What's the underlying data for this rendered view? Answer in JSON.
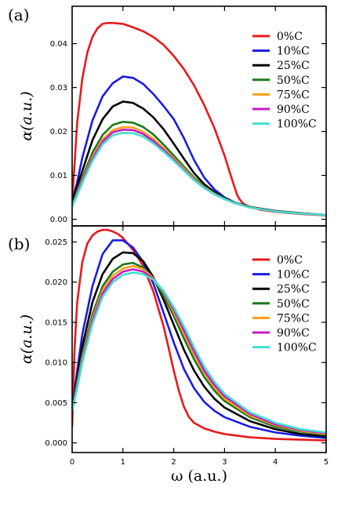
{
  "chart_data": [
    {
      "type": "line",
      "panel_label": "(a)",
      "ylabel": "α(a.u.)",
      "xlabel": "",
      "xlim": [
        0,
        5
      ],
      "ylim": [
        -0.0015,
        0.0485
      ],
      "xticks": [
        0,
        1,
        2,
        3,
        4,
        5
      ],
      "xtick_labels": [
        "",
        "",
        "",
        "",
        "",
        ""
      ],
      "yticks": [
        0.0,
        0.01,
        0.02,
        0.03,
        0.04
      ],
      "ytick_labels": [
        "0.00",
        "0.01",
        "0.02",
        "0.03",
        "0.04"
      ],
      "legend_position": "top-right",
      "series": [
        {
          "name": "0%C",
          "color": "#e8191c",
          "x": [
            0,
            0.1,
            0.2,
            0.3,
            0.4,
            0.5,
            0.6,
            0.7,
            0.8,
            1.0,
            1.2,
            1.4,
            1.6,
            1.8,
            2.0,
            2.2,
            2.4,
            2.6,
            2.8,
            3.0,
            3.1,
            3.2,
            3.25,
            3.3,
            3.35,
            3.4,
            3.5,
            3.7,
            4.0,
            4.5,
            5.0
          ],
          "y": [
            0.004,
            0.022,
            0.032,
            0.038,
            0.0415,
            0.0435,
            0.0445,
            0.0447,
            0.0447,
            0.0445,
            0.0437,
            0.0428,
            0.0415,
            0.0397,
            0.0372,
            0.0342,
            0.0305,
            0.026,
            0.0208,
            0.0145,
            0.0108,
            0.0072,
            0.0055,
            0.0045,
            0.0038,
            0.0033,
            0.0028,
            0.0022,
            0.0017,
            0.0012,
            0.0009
          ]
        },
        {
          "name": "10%C",
          "color": "#1a1ae6",
          "x": [
            0,
            0.1,
            0.2,
            0.4,
            0.6,
            0.8,
            1.0,
            1.2,
            1.4,
            1.6,
            1.8,
            2.0,
            2.2,
            2.4,
            2.6,
            2.8,
            3.0,
            3.2,
            3.5,
            4.0,
            4.5,
            5.0
          ],
          "y": [
            0.004,
            0.0085,
            0.014,
            0.0225,
            0.028,
            0.031,
            0.0325,
            0.0322,
            0.0308,
            0.0285,
            0.0258,
            0.0228,
            0.0185,
            0.0135,
            0.0095,
            0.0068,
            0.005,
            0.0038,
            0.0027,
            0.0018,
            0.0013,
            0.001
          ]
        },
        {
          "name": "25%C",
          "color": "#000000",
          "x": [
            0,
            0.1,
            0.2,
            0.4,
            0.6,
            0.8,
            1.0,
            1.2,
            1.4,
            1.6,
            1.8,
            2.0,
            2.2,
            2.4,
            2.6,
            2.8,
            3.0,
            3.2,
            3.5,
            4.0,
            4.5,
            5.0
          ],
          "y": [
            0.004,
            0.0075,
            0.011,
            0.018,
            0.0228,
            0.0257,
            0.0268,
            0.0265,
            0.0252,
            0.0232,
            0.0205,
            0.0172,
            0.0138,
            0.0105,
            0.008,
            0.0062,
            0.0048,
            0.0038,
            0.0028,
            0.0019,
            0.0014,
            0.001
          ]
        },
        {
          "name": "50%C",
          "color": "#1a7a1a",
          "x": [
            0,
            0.1,
            0.2,
            0.4,
            0.6,
            0.8,
            1.0,
            1.2,
            1.4,
            1.6,
            1.8,
            2.0,
            2.2,
            2.4,
            2.6,
            2.8,
            3.0,
            3.2,
            3.5,
            4.0,
            4.5,
            5.0
          ],
          "y": [
            0.003,
            0.0065,
            0.0095,
            0.0152,
            0.0192,
            0.0215,
            0.0222,
            0.022,
            0.021,
            0.0193,
            0.017,
            0.0145,
            0.012,
            0.0095,
            0.0075,
            0.0059,
            0.0047,
            0.0037,
            0.0027,
            0.0018,
            0.0013,
            0.001
          ]
        },
        {
          "name": "75%C",
          "color": "#ff9f1a",
          "x": [
            0,
            0.1,
            0.2,
            0.4,
            0.6,
            0.8,
            1.0,
            1.2,
            1.4,
            1.6,
            1.8,
            2.0,
            2.2,
            2.4,
            2.6,
            2.8,
            3.0,
            3.2,
            3.5,
            4.0,
            4.5,
            5.0
          ],
          "y": [
            0.003,
            0.006,
            0.009,
            0.0142,
            0.0182,
            0.0203,
            0.021,
            0.0209,
            0.0199,
            0.0183,
            0.0162,
            0.0139,
            0.0116,
            0.0092,
            0.0073,
            0.0058,
            0.0046,
            0.0037,
            0.0027,
            0.0018,
            0.0013,
            0.001
          ]
        },
        {
          "name": "90%C",
          "color": "#c71ac7",
          "x": [
            0,
            0.1,
            0.2,
            0.4,
            0.6,
            0.8,
            1.0,
            1.2,
            1.4,
            1.6,
            1.8,
            2.0,
            2.2,
            2.4,
            2.6,
            2.8,
            3.0,
            3.2,
            3.5,
            4.0,
            4.5,
            5.0
          ],
          "y": [
            0.003,
            0.0058,
            0.0087,
            0.0138,
            0.0177,
            0.0198,
            0.0204,
            0.0203,
            0.0194,
            0.0178,
            0.0158,
            0.0136,
            0.0113,
            0.009,
            0.0072,
            0.0057,
            0.0046,
            0.0037,
            0.0027,
            0.0018,
            0.0013,
            0.001
          ]
        },
        {
          "name": "100%C",
          "color": "#40e0d0",
          "x": [
            0,
            0.1,
            0.2,
            0.4,
            0.6,
            0.8,
            1.0,
            1.2,
            1.4,
            1.6,
            1.8,
            2.0,
            2.2,
            2.4,
            2.6,
            2.8,
            3.0,
            3.2,
            3.5,
            4.0,
            4.5,
            5.0
          ],
          "y": [
            0.003,
            0.0055,
            0.0083,
            0.0133,
            0.0171,
            0.0191,
            0.0197,
            0.0196,
            0.0188,
            0.0173,
            0.0154,
            0.0133,
            0.0111,
            0.0089,
            0.0071,
            0.0057,
            0.0046,
            0.0037,
            0.0027,
            0.0018,
            0.0013,
            0.001
          ]
        }
      ]
    },
    {
      "type": "line",
      "panel_label": "(b)",
      "ylabel": "α(a.u.)",
      "xlabel": "ω (a.u.)",
      "xlim": [
        0,
        5
      ],
      "ylim": [
        -0.0012,
        0.027
      ],
      "xticks": [
        0,
        1,
        2,
        3,
        4,
        5
      ],
      "xtick_labels": [
        "0",
        "1",
        "2",
        "3",
        "4",
        "5"
      ],
      "yticks": [
        0.0,
        0.005,
        0.01,
        0.015,
        0.02,
        0.025
      ],
      "ytick_labels": [
        "0.000",
        "0.005",
        "0.010",
        "0.015",
        "0.020",
        "0.025"
      ],
      "legend_position": "top-right",
      "series": [
        {
          "name": "0%C",
          "color": "#e8191c",
          "x": [
            0,
            0.05,
            0.1,
            0.2,
            0.3,
            0.4,
            0.5,
            0.6,
            0.7,
            0.8,
            0.9,
            1.0,
            1.2,
            1.4,
            1.6,
            1.8,
            1.9,
            2.0,
            2.1,
            2.2,
            2.3,
            2.4,
            2.6,
            2.8,
            3.0,
            3.5,
            4.0,
            4.5,
            5.0
          ],
          "y": [
            0.002,
            0.012,
            0.0175,
            0.0225,
            0.0248,
            0.0258,
            0.0263,
            0.0265,
            0.0265,
            0.0263,
            0.026,
            0.0255,
            0.024,
            0.022,
            0.0188,
            0.0145,
            0.0118,
            0.009,
            0.0065,
            0.0045,
            0.0032,
            0.0025,
            0.0018,
            0.0014,
            0.0011,
            0.0007,
            0.0005,
            0.0004,
            0.0003
          ]
        },
        {
          "name": "10%C",
          "color": "#1a1ae6",
          "x": [
            0,
            0.1,
            0.2,
            0.4,
            0.6,
            0.8,
            1.0,
            1.2,
            1.4,
            1.6,
            1.8,
            2.0,
            2.2,
            2.4,
            2.6,
            2.8,
            3.0,
            3.5,
            4.0,
            4.5,
            5.0
          ],
          "y": [
            0.004,
            0.009,
            0.0135,
            0.0195,
            0.0235,
            0.0252,
            0.0252,
            0.0243,
            0.0225,
            0.0198,
            0.0162,
            0.0125,
            0.0092,
            0.0068,
            0.0051,
            0.004,
            0.0032,
            0.002,
            0.0013,
            0.0009,
            0.0006
          ]
        },
        {
          "name": "25%C",
          "color": "#000000",
          "x": [
            0,
            0.1,
            0.2,
            0.4,
            0.6,
            0.8,
            1.0,
            1.2,
            1.4,
            1.6,
            1.8,
            2.0,
            2.2,
            2.4,
            2.6,
            2.8,
            3.0,
            3.5,
            4.0,
            4.5,
            5.0
          ],
          "y": [
            0.004,
            0.008,
            0.012,
            0.0175,
            0.021,
            0.0229,
            0.0237,
            0.0236,
            0.0226,
            0.0206,
            0.0178,
            0.0147,
            0.0116,
            0.009,
            0.007,
            0.0055,
            0.0044,
            0.0027,
            0.0017,
            0.0011,
            0.0008
          ]
        },
        {
          "name": "50%C",
          "color": "#1a7a1a",
          "x": [
            0,
            0.1,
            0.2,
            0.4,
            0.6,
            0.8,
            1.0,
            1.2,
            1.4,
            1.6,
            1.8,
            2.0,
            2.2,
            2.4,
            2.6,
            2.8,
            3.0,
            3.5,
            4.0,
            4.5,
            5.0
          ],
          "y": [
            0.004,
            0.0075,
            0.011,
            0.016,
            0.0195,
            0.0213,
            0.0222,
            0.0224,
            0.0218,
            0.0204,
            0.0183,
            0.0158,
            0.013,
            0.0104,
            0.0082,
            0.0065,
            0.0052,
            0.0032,
            0.002,
            0.0014,
            0.001
          ]
        },
        {
          "name": "75%C",
          "color": "#ff9f1a",
          "x": [
            0,
            0.1,
            0.2,
            0.4,
            0.6,
            0.8,
            1.0,
            1.2,
            1.4,
            1.6,
            1.8,
            2.0,
            2.2,
            2.4,
            2.6,
            2.8,
            3.0,
            3.5,
            4.0,
            4.5,
            5.0
          ],
          "y": [
            0.004,
            0.0072,
            0.0105,
            0.0155,
            0.019,
            0.0208,
            0.0217,
            0.022,
            0.0216,
            0.0205,
            0.0187,
            0.0163,
            0.0136,
            0.011,
            0.0087,
            0.0069,
            0.0055,
            0.0034,
            0.0022,
            0.0015,
            0.0011
          ]
        },
        {
          "name": "90%C",
          "color": "#c71ac7",
          "x": [
            0,
            0.1,
            0.2,
            0.4,
            0.6,
            0.8,
            1.0,
            1.2,
            1.4,
            1.6,
            1.8,
            2.0,
            2.2,
            2.4,
            2.6,
            2.8,
            3.0,
            3.5,
            4.0,
            4.5,
            5.0
          ],
          "y": [
            0.004,
            0.007,
            0.0102,
            0.0152,
            0.0186,
            0.0204,
            0.0213,
            0.0216,
            0.0213,
            0.0204,
            0.0188,
            0.0166,
            0.014,
            0.0114,
            0.009,
            0.0072,
            0.0058,
            0.0036,
            0.0023,
            0.0016,
            0.0012
          ]
        },
        {
          "name": "100%C",
          "color": "#40e0d0",
          "x": [
            0,
            0.1,
            0.2,
            0.4,
            0.6,
            0.8,
            1.0,
            1.2,
            1.4,
            1.6,
            1.8,
            2.0,
            2.2,
            2.4,
            2.6,
            2.8,
            3.0,
            3.5,
            4.0,
            4.5,
            5.0
          ],
          "y": [
            0.004,
            0.0068,
            0.01,
            0.0148,
            0.0182,
            0.02,
            0.0209,
            0.0212,
            0.021,
            0.0203,
            0.0189,
            0.0169,
            0.0145,
            0.0119,
            0.0095,
            0.0076,
            0.0061,
            0.0038,
            0.0025,
            0.0017,
            0.0013
          ]
        }
      ]
    }
  ]
}
